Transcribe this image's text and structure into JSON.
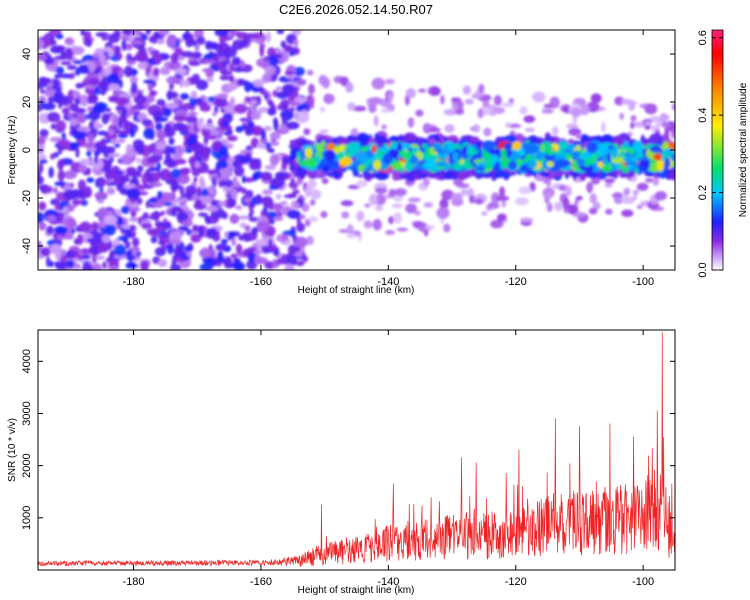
{
  "figure": {
    "title": "C2E6.2026.052.14.50.R07"
  },
  "chart_data": [
    {
      "type": "heatmap",
      "title": "C2E6.2026.052.14.50.R07",
      "xlabel": "Height of straight line (km)",
      "ylabel": "Frequency (Hz)",
      "xlim": [
        -195,
        -95
      ],
      "ylim": [
        -50,
        50
      ],
      "x_ticks": [
        -180,
        -160,
        -140,
        -120,
        -100
      ],
      "y_ticks": [
        -40,
        -20,
        0,
        20,
        40
      ],
      "x_tick_labels": [
        "-180",
        "-160",
        "-140",
        "-120",
        "-100"
      ],
      "y_tick_labels": [
        "-40",
        "-20",
        "0",
        "20",
        "40"
      ],
      "colorbar": {
        "label": "Normalized spectral amplitude",
        "range": [
          0.0,
          0.62
        ],
        "ticks": [
          0.0,
          0.2,
          0.4,
          0.6
        ],
        "tick_labels": [
          "0.0",
          "0.2",
          "0.4",
          "0.6"
        ],
        "colors": [
          "#ffffff",
          "#d9b8ff",
          "#8a2be2",
          "#2020ff",
          "#00c8ff",
          "#00e070",
          "#ffee00",
          "#ff8800",
          "#ff0000",
          "#ff2080"
        ]
      },
      "regions": [
        {
          "name": "broadband noise",
          "x_range": [
            -195,
            -155
          ],
          "y_range": [
            -50,
            50
          ]
        },
        {
          "name": "signal band",
          "x_range": [
            -155,
            -95
          ],
          "center_hz": -3,
          "half_width_hz": 8
        }
      ]
    },
    {
      "type": "line",
      "xlabel": "Height of straight line (km)",
      "ylabel": "SNR (10 * v/v)",
      "xlim": [
        -195,
        -95
      ],
      "ylim": [
        0,
        4600
      ],
      "x_ticks": [
        -180,
        -160,
        -140,
        -120,
        -100
      ],
      "y_ticks": [
        1000,
        2000,
        3000,
        4000
      ],
      "x_tick_labels": [
        "-180",
        "-160",
        "-140",
        "-120",
        "-100"
      ],
      "y_tick_labels": [
        "1000",
        "2000",
        "3000",
        "4000"
      ],
      "color": "#ee2222",
      "envelope": {
        "x": [
          -195,
          -160,
          -155,
          -150,
          -145,
          -140,
          -135,
          -130,
          -125,
          -120,
          -115,
          -110,
          -105,
          -100,
          -97,
          -95
        ],
        "y": [
          130,
          150,
          200,
          380,
          480,
          620,
          700,
          760,
          800,
          850,
          1050,
          1100,
          1150,
          1200,
          1400,
          500
        ]
      },
      "peaks": [
        {
          "x": -150.5,
          "y": 1250
        },
        {
          "x": -139.2,
          "y": 1650
        },
        {
          "x": -128.5,
          "y": 2150
        },
        {
          "x": -126.2,
          "y": 2050
        },
        {
          "x": -121.5,
          "y": 1850
        },
        {
          "x": -119.5,
          "y": 2300
        },
        {
          "x": -113.8,
          "y": 2900
        },
        {
          "x": -110.0,
          "y": 2750
        },
        {
          "x": -105.2,
          "y": 2800
        },
        {
          "x": -101.5,
          "y": 2550
        },
        {
          "x": -97.8,
          "y": 3050
        },
        {
          "x": -97.0,
          "y": 4550
        },
        {
          "x": -95.5,
          "y": 1650
        }
      ]
    }
  ]
}
